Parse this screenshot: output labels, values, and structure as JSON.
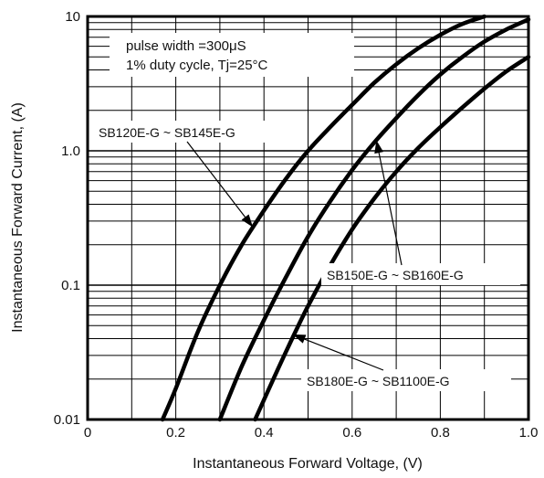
{
  "chart_data": {
    "type": "line",
    "xlabel": "Instantaneous Forward Voltage, (V)",
    "ylabel": "Instantaneous Forward Current, (A)",
    "xlim": [
      0,
      1.0
    ],
    "ylim": [
      0.01,
      10
    ],
    "y_scale": "log",
    "grid": true,
    "x_ticks": [
      "0",
      "0.2",
      "0.4",
      "0.6",
      "0.8",
      "1.0"
    ],
    "y_ticks": [
      "0.01",
      "0.1",
      "1.0",
      "10"
    ],
    "annotations": [
      "pulse width =300μS",
      "1% duty cycle, Tj=25°C"
    ],
    "series": [
      {
        "name": "SB120E-G ~ SB145E-G",
        "x": [
          0.17,
          0.2,
          0.25,
          0.3,
          0.35,
          0.4,
          0.45,
          0.5,
          0.55,
          0.6,
          0.65,
          0.7,
          0.75,
          0.8,
          0.85,
          0.9
        ],
        "y": [
          0.01,
          0.017,
          0.045,
          0.1,
          0.2,
          0.36,
          0.62,
          1.0,
          1.5,
          2.2,
          3.2,
          4.4,
          5.8,
          7.3,
          8.8,
          10
        ]
      },
      {
        "name": "SB150E-G ~ SB160E-G",
        "x": [
          0.3,
          0.35,
          0.4,
          0.45,
          0.5,
          0.55,
          0.6,
          0.65,
          0.7,
          0.75,
          0.8,
          0.85,
          0.9,
          0.95,
          1.0
        ],
        "y": [
          0.01,
          0.025,
          0.055,
          0.115,
          0.23,
          0.42,
          0.72,
          1.15,
          1.75,
          2.6,
          3.7,
          5.0,
          6.5,
          8.0,
          9.5
        ]
      },
      {
        "name": "SB180E-G ~ SB1100E-G",
        "x": [
          0.38,
          0.4,
          0.45,
          0.5,
          0.55,
          0.6,
          0.65,
          0.7,
          0.75,
          0.8,
          0.85,
          0.9,
          0.95,
          1.0
        ],
        "y": [
          0.01,
          0.014,
          0.032,
          0.07,
          0.14,
          0.26,
          0.44,
          0.7,
          1.05,
          1.5,
          2.1,
          2.9,
          3.9,
          5.0
        ]
      }
    ]
  }
}
